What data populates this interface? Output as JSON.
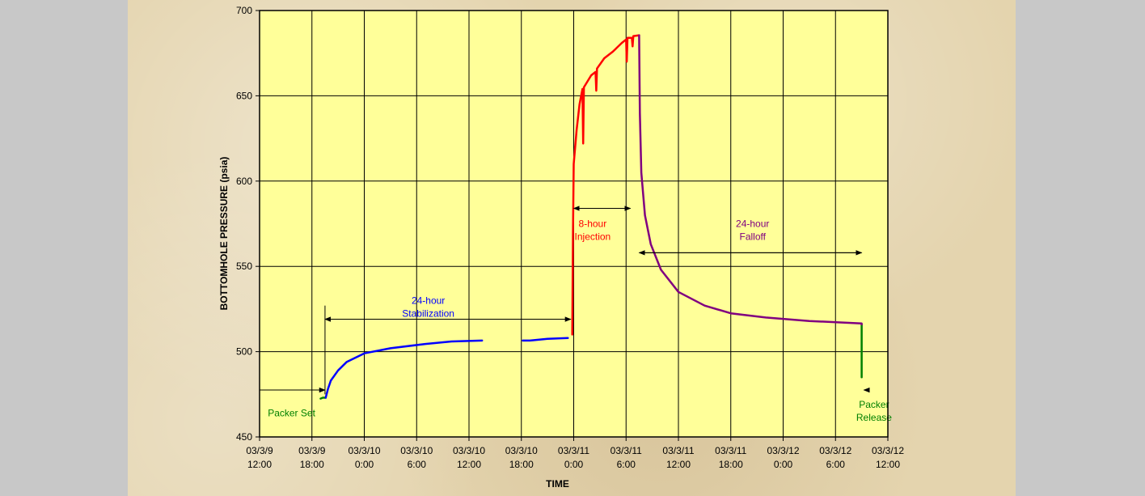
{
  "chart_data": {
    "type": "line",
    "xlabel": "TIME",
    "ylabel": "BOTTOMHOLE PRESSURE (psia)",
    "ylim": [
      450,
      700
    ],
    "y_ticks": [
      450,
      500,
      550,
      600,
      650,
      700
    ],
    "xlim": [
      "03/3/9 12:00",
      "03/3/12 12:00"
    ],
    "x_ticks": [
      [
        "03/3/9",
        "12:00"
      ],
      [
        "03/3/9",
        "18:00"
      ],
      [
        "03/3/10",
        "0:00"
      ],
      [
        "03/3/10",
        "6:00"
      ],
      [
        "03/3/10",
        "12:00"
      ],
      [
        "03/3/10",
        "18:00"
      ],
      [
        "03/3/11",
        "0:00"
      ],
      [
        "03/3/11",
        "6:00"
      ],
      [
        "03/3/11",
        "12:00"
      ],
      [
        "03/3/11",
        "18:00"
      ],
      [
        "03/3/12",
        "0:00"
      ],
      [
        "03/3/12",
        "6:00"
      ],
      [
        "03/3/12",
        "12:00"
      ]
    ],
    "grid": true,
    "series": [
      {
        "color": "#008000",
        "segments": [
          [
            [
              "03/3/9 19:00",
              472.5
            ],
            [
              "03/3/9 19:15",
              473
            ],
            [
              "03/3/9 19:35",
              473
            ]
          ],
          [
            [
              "03/3/12 9:00",
              516
            ],
            [
              "03/3/12 9:00",
              485
            ]
          ]
        ]
      },
      {
        "color": "#0000ff",
        "segments": [
          [
            [
              "03/3/9 19:35",
              473
            ],
            [
              "03/3/9 19:50",
              478
            ],
            [
              "03/3/9 20:10",
              483
            ],
            [
              "03/3/9 21:00",
              489
            ],
            [
              "03/3/9 22:00",
              494
            ],
            [
              "03/3/10 0:00",
              499
            ],
            [
              "03/3/10 3:00",
              502
            ],
            [
              "03/3/10 7:00",
              504.5
            ],
            [
              "03/3/10 10:00",
              506
            ],
            [
              "03/3/10 13:30",
              506.5
            ]
          ],
          [
            [
              "03/3/10 18:10",
              506.5
            ],
            [
              "03/3/10 19:00",
              506.5
            ],
            [
              "03/3/10 21:00",
              507.5
            ],
            [
              "03/3/10 23:20",
              508
            ]
          ]
        ]
      },
      {
        "color": "#ff0000",
        "segments": [
          [
            [
              "03/3/10 23:50",
              510
            ],
            [
              "03/3/10 23:55",
              570
            ],
            [
              "03/3/11 0:00",
              610
            ],
            [
              "03/3/11 0:20",
              630
            ],
            [
              "03/3/11 0:40",
              645
            ],
            [
              "03/3/11 1:00",
              654
            ],
            [
              "03/3/11 1:05",
              622
            ],
            [
              "03/3/11 1:10",
              655
            ],
            [
              "03/3/11 2:00",
              662
            ],
            [
              "03/3/11 2:30",
              664
            ],
            [
              "03/3/11 2:35",
              653
            ],
            [
              "03/3/11 2:40",
              666
            ],
            [
              "03/3/11 3:30",
              672
            ],
            [
              "03/3/11 4:30",
              676
            ],
            [
              "03/3/11 5:30",
              681
            ],
            [
              "03/3/11 6:00",
              683
            ],
            [
              "03/3/11 6:05",
              670
            ],
            [
              "03/3/11 6:10",
              684
            ],
            [
              "03/3/11 6:40",
              684
            ],
            [
              "03/3/11 6:45",
              679
            ],
            [
              "03/3/11 6:50",
              685
            ],
            [
              "03/3/11 7:30",
              685.5
            ]
          ]
        ]
      },
      {
        "color": "#800080",
        "segments": [
          [
            [
              "03/3/11 7:30",
              685.5
            ],
            [
              "03/3/11 7:35",
              640
            ],
            [
              "03/3/11 7:45",
              605
            ],
            [
              "03/3/11 8:10",
              580
            ],
            [
              "03/3/11 8:50",
              563
            ],
            [
              "03/3/11 10:00",
              548
            ],
            [
              "03/3/11 12:00",
              535
            ],
            [
              "03/3/11 15:00",
              527
            ],
            [
              "03/3/11 18:00",
              522.5
            ],
            [
              "03/3/11 22:00",
              520
            ],
            [
              "03/3/12 3:00",
              518
            ],
            [
              "03/3/12 9:00",
              516.5
            ],
            [
              "03/3/12 9:00",
              516
            ]
          ]
        ]
      }
    ],
    "annotations": [
      {
        "lines": [
          "Packer Set"
        ],
        "color": "#008000",
        "arrow": [
          "03/3/9 12:00",
          "03/3/9 19:30"
        ],
        "arrow_y": 477.5,
        "text_x": "03/3/9 15:40",
        "text_y": 462
      },
      {
        "lines": [
          "24-hour",
          "Stabilization"
        ],
        "color": "#0000ff",
        "arrow": [
          "03/3/9 19:30",
          "03/3/10 23:40"
        ],
        "arrow_y": 519,
        "text_x": "03/3/10 7:20",
        "text_y": 528
      },
      {
        "lines": [
          "8-hour",
          "Injection"
        ],
        "color": "#ff0000",
        "arrow": [
          "03/3/11 0:00",
          "03/3/11 6:30"
        ],
        "arrow_y": 584,
        "text_x": "03/3/11 2:10",
        "text_y": 573
      },
      {
        "lines": [
          "24-hour",
          "Falloff"
        ],
        "color": "#800080",
        "arrow": [
          "03/3/11 7:30",
          "03/3/12 9:00"
        ],
        "arrow_y": 558,
        "text_x": "03/3/11 20:30",
        "text_y": 573
      },
      {
        "lines": [
          "Packer",
          "Release"
        ],
        "color": "#008000",
        "arrow": [
          "03/3/12 9:40",
          "03/3/12 9:15"
        ],
        "arrow_y": 477.5,
        "text_x": "03/3/12 10:25",
        "text_y": 467
      }
    ]
  },
  "colors": {
    "plot_background": "#ffff99",
    "page_background": "#e4d4ae",
    "outer_background": "#c8c8c8"
  }
}
